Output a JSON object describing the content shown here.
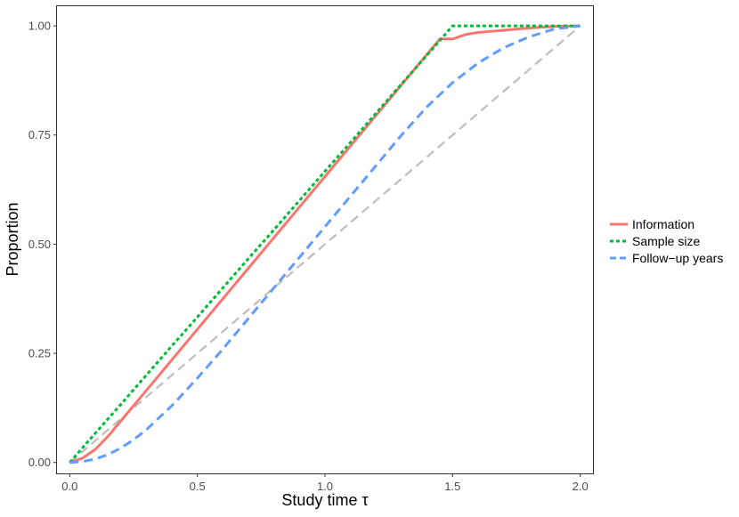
{
  "chart_data": {
    "type": "line",
    "title": "",
    "xlabel": "Study time τ",
    "ylabel": "Proportion",
    "xlim": [
      -0.05,
      2.05
    ],
    "ylim": [
      -0.025,
      1.045
    ],
    "x_ticks": [
      0.0,
      0.5,
      1.0,
      1.5,
      2.0
    ],
    "x_tick_labels": [
      "0.0",
      "0.5",
      "1.0",
      "1.5",
      "2.0"
    ],
    "y_ticks": [
      0.0,
      0.25,
      0.5,
      0.75,
      1.0
    ],
    "y_tick_labels": [
      "0.00",
      "0.25",
      "0.50",
      "0.75",
      "1.00"
    ],
    "grid": false,
    "legend_position": "right",
    "reference_line": {
      "name": "reference",
      "color": "#bdbdbd",
      "x": [
        0.0,
        2.0
      ],
      "y": [
        0.0,
        1.0
      ]
    },
    "series": [
      {
        "name": "Information",
        "color": "#f8766d",
        "style": "solid",
        "x": [
          0.0,
          0.05,
          0.1,
          0.15,
          0.2,
          0.3,
          0.4,
          0.5,
          0.6,
          0.7,
          0.8,
          0.9,
          1.0,
          1.1,
          1.2,
          1.3,
          1.4,
          1.45,
          1.5,
          1.55,
          1.6,
          1.7,
          1.8,
          1.9,
          2.0
        ],
        "y": [
          0.0,
          0.01,
          0.03,
          0.06,
          0.095,
          0.165,
          0.235,
          0.305,
          0.375,
          0.445,
          0.515,
          0.585,
          0.655,
          0.725,
          0.795,
          0.865,
          0.935,
          0.97,
          0.97,
          0.98,
          0.985,
          0.99,
          0.995,
          0.999,
          1.0
        ]
      },
      {
        "name": "Sample size",
        "color": "#00ba38",
        "style": "dotted",
        "x": [
          0.0,
          0.1,
          0.2,
          0.3,
          0.4,
          0.5,
          0.6,
          0.7,
          0.8,
          0.9,
          1.0,
          1.1,
          1.2,
          1.3,
          1.4,
          1.5,
          1.6,
          1.7,
          1.8,
          1.9,
          2.0
        ],
        "y": [
          0.0,
          0.067,
          0.133,
          0.2,
          0.267,
          0.333,
          0.4,
          0.467,
          0.533,
          0.6,
          0.667,
          0.733,
          0.8,
          0.867,
          0.933,
          1.0,
          1.0,
          1.0,
          1.0,
          1.0,
          1.0
        ]
      },
      {
        "name": "Follow−up years",
        "color": "#619cff",
        "style": "dashed",
        "x": [
          0.0,
          0.05,
          0.1,
          0.15,
          0.2,
          0.25,
          0.3,
          0.4,
          0.5,
          0.6,
          0.7,
          0.8,
          0.9,
          1.0,
          1.1,
          1.2,
          1.3,
          1.4,
          1.5,
          1.6,
          1.7,
          1.8,
          1.9,
          2.0
        ],
        "y": [
          0.0,
          0.002,
          0.008,
          0.018,
          0.033,
          0.052,
          0.075,
          0.13,
          0.193,
          0.26,
          0.33,
          0.4,
          0.47,
          0.54,
          0.61,
          0.68,
          0.75,
          0.815,
          0.87,
          0.915,
          0.95,
          0.975,
          0.993,
          1.0
        ]
      }
    ]
  }
}
